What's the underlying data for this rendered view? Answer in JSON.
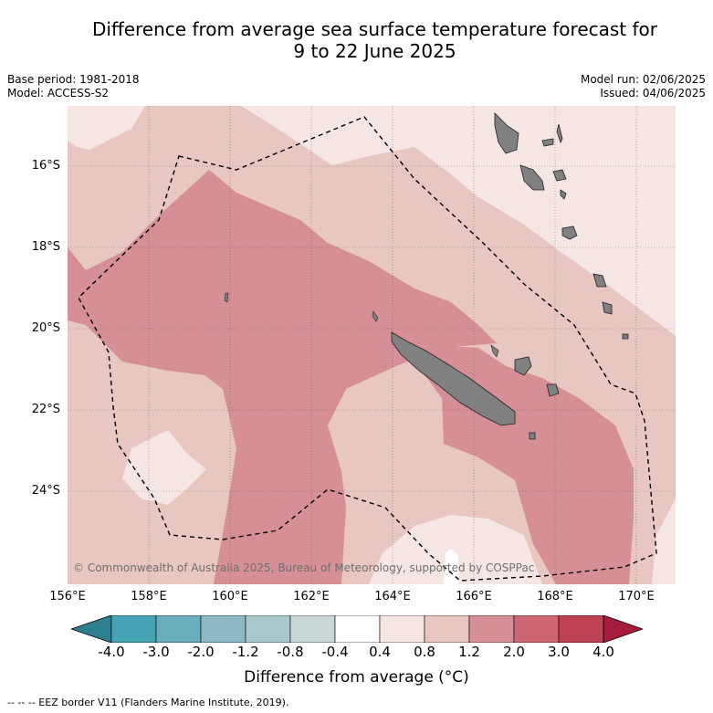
{
  "title": {
    "line1": "Difference from average sea surface temperature forecast for",
    "line2": "9 to 22 June 2025"
  },
  "meta": {
    "base_period": "Base period: 1981-2018",
    "model": "Model: ACCESS-S2",
    "model_run": "Model run: 02/06/2025",
    "issued": "Issued: 04/06/2025"
  },
  "map": {
    "lat_labels": [
      "16°S",
      "18°S",
      "20°S",
      "22°S",
      "24°S"
    ],
    "lon_labels": [
      "156°E",
      "158°E",
      "160°E",
      "162°E",
      "164°E",
      "166°E",
      "168°E",
      "170°E"
    ],
    "copyright": "© Commonwealth of Australia 2025, Bureau of Meteorology, supported by COSPPac",
    "land_color": "#808080",
    "anomaly_colors": {
      "0.4_0.8": "#f5e6e4",
      "0.8_1.2": "#e8c6c1",
      "1.2_2.0": "#d68f97"
    }
  },
  "colorbar": {
    "ticks": [
      "-4.0",
      "-3.0",
      "-2.0",
      "-1.2",
      "-0.8",
      "-0.4",
      "0.4",
      "0.8",
      "1.2",
      "2.0",
      "3.0",
      "4.0"
    ],
    "colors": [
      "#2e7f8f",
      "#45a3b3",
      "#6aaebd",
      "#8db9c4",
      "#a9c8cc",
      "#cad7d9",
      "#ffffff",
      "#f5e6e4",
      "#e8c6c1",
      "#d68f97",
      "#cd6672",
      "#bd4253",
      "#a81c3b"
    ],
    "label": "Difference from average (°C)"
  },
  "footer": {
    "legend": "-- -- -- EEZ border V11 (Flanders Marine Institute, 2019)."
  }
}
